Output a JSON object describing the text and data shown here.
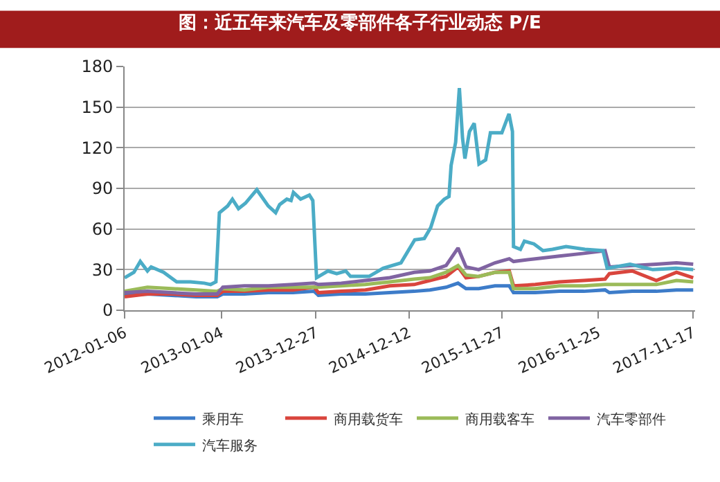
{
  "chart_data": {
    "type": "line",
    "title": "图：近五年来汽车及零部件各子行业动态 P/E",
    "x": [
      "2012-01-06",
      "2012-04-01",
      "2012-07-01",
      "2012-10-01",
      "2012-12-20",
      "2013-01-10",
      "2013-04-01",
      "2013-07-01",
      "2013-10-01",
      "2013-12-20",
      "2014-01-05",
      "2014-04-01",
      "2014-07-01",
      "2014-10-01",
      "2015-01-01",
      "2015-03-01",
      "2015-05-01",
      "2015-06-15",
      "2015-07-15",
      "2015-09-01",
      "2015-11-01",
      "2015-12-25",
      "2016-01-10",
      "2016-04-01",
      "2016-07-01",
      "2016-10-01",
      "2016-12-20",
      "2017-01-05",
      "2017-04-01",
      "2017-07-01",
      "2017-09-15",
      "2017-11-17"
    ],
    "series": [
      {
        "name": "乘用车",
        "color": "#3d7cc9",
        "values": [
          11,
          12,
          11,
          10,
          10,
          12,
          12,
          13,
          13,
          14,
          11,
          12,
          12,
          13,
          14,
          15,
          17,
          20,
          16,
          16,
          18,
          18,
          13,
          13,
          14,
          14,
          15,
          13,
          14,
          14,
          15,
          15
        ]
      },
      {
        "name": "商用载货车",
        "color": "#d9453d",
        "values": [
          10,
          12,
          12,
          11,
          11,
          14,
          14,
          15,
          15,
          17,
          13,
          14,
          15,
          18,
          19,
          22,
          25,
          32,
          24,
          25,
          28,
          29,
          18,
          19,
          21,
          22,
          23,
          27,
          29,
          22,
          28,
          24
        ]
      },
      {
        "name": "商用载客车",
        "color": "#9bbb59",
        "values": [
          14,
          17,
          16,
          15,
          14,
          16,
          15,
          17,
          17,
          17,
          17,
          18,
          19,
          21,
          23,
          24,
          28,
          33,
          26,
          25,
          28,
          28,
          16,
          16,
          18,
          18,
          19,
          19,
          19,
          19,
          22,
          21
        ]
      },
      {
        "name": "汽车零部件",
        "color": "#8064a2",
        "values": [
          13,
          14,
          13,
          12,
          12,
          17,
          18,
          18,
          19,
          20,
          19,
          20,
          22,
          24,
          28,
          29,
          33,
          46,
          32,
          30,
          35,
          38,
          36,
          38,
          40,
          42,
          44,
          32,
          33,
          34,
          35,
          34
        ]
      },
      {
        "name": "汽车服务",
        "color": "#4bacc6",
        "x": [
          "2012-01-06",
          "2012-02-10",
          "2012-03-05",
          "2012-04-01",
          "2012-04-15",
          "2012-06-01",
          "2012-07-20",
          "2012-09-10",
          "2012-11-01",
          "2012-11-25",
          "2012-12-15",
          "2012-12-28",
          "2013-01-28",
          "2013-02-15",
          "2013-03-10",
          "2013-04-05",
          "2013-05-18",
          "2013-06-30",
          "2013-07-28",
          "2013-08-12",
          "2013-09-08",
          "2013-09-24",
          "2013-10-03",
          "2013-10-30",
          "2013-12-02",
          "2013-12-15",
          "2013-12-29",
          "2014-02-10",
          "2014-03-15",
          "2014-04-18",
          "2014-05-06",
          "2014-07-15",
          "2014-09-06",
          "2014-11-12",
          "2015-01-03",
          "2015-02-08",
          "2015-03-04",
          "2015-03-30",
          "2015-04-24",
          "2015-05-12",
          "2015-05-20",
          "2015-06-06",
          "2015-06-20",
          "2015-07-02",
          "2015-07-11",
          "2015-07-28",
          "2015-08-15",
          "2015-09-02",
          "2015-09-27",
          "2015-10-15",
          "2015-11-27",
          "2015-12-24",
          "2016-01-06",
          "2016-01-10",
          "2016-02-05",
          "2016-02-20",
          "2016-03-27",
          "2016-04-30",
          "2016-06-05",
          "2016-07-26",
          "2016-10-05",
          "2016-12-12",
          "2016-12-28",
          "2017-03-24",
          "2017-06-18",
          "2017-09-12",
          "2017-11-17"
        ],
        "values": [
          24,
          28,
          36,
          29,
          32,
          28,
          21,
          21,
          20,
          19,
          21,
          72,
          77,
          82,
          75,
          79,
          89,
          77,
          72,
          78,
          82,
          81,
          87,
          82,
          85,
          81,
          24,
          29,
          27,
          29,
          25,
          25,
          31,
          35,
          52,
          53,
          61,
          77,
          82,
          84,
          107,
          124,
          164,
          127,
          112,
          132,
          138,
          108,
          111,
          131,
          131,
          145,
          132,
          47,
          45,
          51,
          49,
          44,
          45,
          47,
          45,
          44,
          31,
          34,
          30,
          31,
          30
        ]
      }
    ],
    "xlim": [
      "2012-01-06",
      "2017-11-24"
    ],
    "xticks": [
      "2012-01-06",
      "2013-01-04",
      "2013-12-27",
      "2014-12-12",
      "2015-11-27",
      "2016-11-25",
      "2017-11-17"
    ],
    "ylim": [
      0,
      180
    ],
    "yticks": [
      0,
      30,
      60,
      90,
      120,
      150,
      180
    ],
    "grid": "y",
    "legend": "bottom",
    "marker": "none",
    "line_style": "solid"
  }
}
